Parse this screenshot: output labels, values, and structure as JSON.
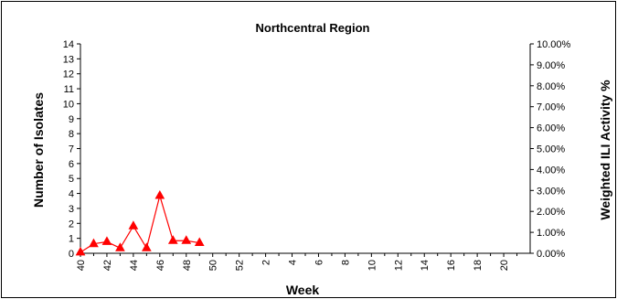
{
  "chart_data": {
    "type": "line",
    "title": "Northcentral Region",
    "xlabel": "Week",
    "ylabel": "Number of Isolates",
    "y2label": "Weighted ILI Activity %",
    "x_tick_labels": [
      "40",
      "42",
      "44",
      "46",
      "48",
      "50",
      "52",
      "2",
      "4",
      "6",
      "8",
      "10",
      "12",
      "14",
      "16",
      "18",
      "20"
    ],
    "y_tick_labels": [
      "0",
      "1",
      "2",
      "3",
      "4",
      "5",
      "6",
      "7",
      "8",
      "9",
      "10",
      "11",
      "12",
      "13",
      "14"
    ],
    "y2_tick_labels": [
      "0.00%",
      "1.00%",
      "2.00%",
      "3.00%",
      "4.00%",
      "5.00%",
      "6.00%",
      "7.00%",
      "8.00%",
      "9.00%",
      "10.00%"
    ],
    "ylim": [
      0,
      14
    ],
    "y2lim": [
      0,
      10
    ],
    "grid": false,
    "series": [
      {
        "axis": "right",
        "color": "#ff0000",
        "marker": "triangle",
        "x": [
          "40",
          "41",
          "42",
          "43",
          "44",
          "45",
          "46",
          "47",
          "48",
          "49"
        ],
        "values": [
          0.05,
          0.45,
          0.55,
          0.25,
          1.3,
          0.25,
          2.75,
          0.6,
          0.6,
          0.5
        ]
      }
    ]
  }
}
